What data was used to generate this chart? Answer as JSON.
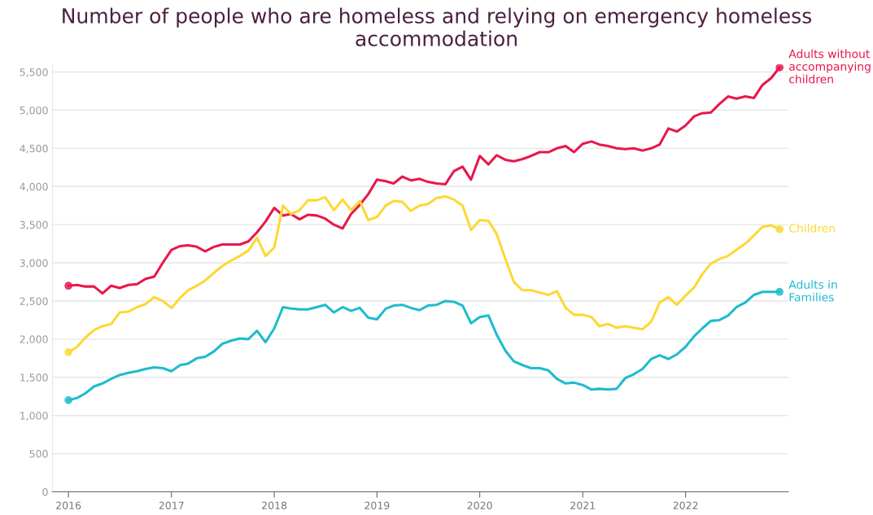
{
  "chart_data": {
    "type": "line",
    "title": "Number of people who are homeless and relying on emergency homeless accommodation",
    "x": [
      "2016-01",
      "2016-02",
      "2016-03",
      "2016-04",
      "2016-05",
      "2016-06",
      "2016-07",
      "2016-08",
      "2016-09",
      "2016-10",
      "2016-11",
      "2016-12",
      "2017-01",
      "2017-02",
      "2017-03",
      "2017-04",
      "2017-05",
      "2017-06",
      "2017-07",
      "2017-08",
      "2017-09",
      "2017-10",
      "2017-11",
      "2017-12",
      "2018-01",
      "2018-02",
      "2018-03",
      "2018-04",
      "2018-05",
      "2018-06",
      "2018-07",
      "2018-08",
      "2018-09",
      "2018-10",
      "2018-11",
      "2018-12",
      "2019-01",
      "2019-02",
      "2019-03",
      "2019-04",
      "2019-05",
      "2019-06",
      "2019-07",
      "2019-08",
      "2019-09",
      "2019-10",
      "2019-11",
      "2019-12",
      "2020-01",
      "2020-02",
      "2020-03",
      "2020-04",
      "2020-05",
      "2020-06",
      "2020-07",
      "2020-08",
      "2020-09",
      "2020-10",
      "2020-11",
      "2020-12",
      "2021-01",
      "2021-02",
      "2021-03",
      "2021-04",
      "2021-05",
      "2021-06",
      "2021-07",
      "2021-08",
      "2021-09",
      "2021-10",
      "2021-11",
      "2021-12",
      "2022-01",
      "2022-02",
      "2022-03",
      "2022-04",
      "2022-05",
      "2022-06",
      "2022-07",
      "2022-08",
      "2022-09",
      "2022-10",
      "2022-11",
      "2022-12"
    ],
    "series": [
      {
        "name": "Adults without accompanying children",
        "color": "#e8174a",
        "values": [
          2700,
          2710,
          2690,
          2690,
          2600,
          2700,
          2670,
          2710,
          2720,
          2790,
          2820,
          3000,
          3170,
          3220,
          3230,
          3210,
          3150,
          3210,
          3240,
          3240,
          3240,
          3280,
          3400,
          3540,
          3720,
          3620,
          3640,
          3570,
          3630,
          3620,
          3580,
          3500,
          3450,
          3640,
          3760,
          3900,
          4090,
          4070,
          4040,
          4130,
          4080,
          4100,
          4060,
          4040,
          4030,
          4200,
          4260,
          4090,
          4400,
          4290,
          4410,
          4350,
          4330,
          4360,
          4400,
          4450,
          4450,
          4500,
          4530,
          4450,
          4560,
          4590,
          4550,
          4530,
          4500,
          4490,
          4500,
          4470,
          4500,
          4550,
          4760,
          4720,
          4800,
          4920,
          4960,
          4970,
          5080,
          5180,
          5150,
          5180,
          5160,
          5330,
          5420,
          5560
        ]
      },
      {
        "name": "Children",
        "color": "#fdd835",
        "values": [
          1830,
          1900,
          2020,
          2120,
          2170,
          2200,
          2350,
          2360,
          2420,
          2460,
          2550,
          2500,
          2410,
          2540,
          2640,
          2700,
          2770,
          2870,
          2960,
          3030,
          3090,
          3160,
          3330,
          3090,
          3200,
          3750,
          3640,
          3690,
          3820,
          3820,
          3860,
          3690,
          3830,
          3690,
          3810,
          3560,
          3600,
          3750,
          3810,
          3800,
          3680,
          3750,
          3770,
          3850,
          3870,
          3830,
          3750,
          3430,
          3560,
          3550,
          3380,
          3050,
          2750,
          2640,
          2640,
          2610,
          2580,
          2630,
          2410,
          2320,
          2320,
          2290,
          2170,
          2200,
          2150,
          2170,
          2150,
          2130,
          2230,
          2480,
          2550,
          2450,
          2570,
          2680,
          2850,
          2990,
          3050,
          3090,
          3170,
          3250,
          3360,
          3470,
          3490,
          3440
        ]
      },
      {
        "name": "Adults in Families",
        "color": "#1ebccd",
        "values": [
          1200,
          1230,
          1290,
          1380,
          1420,
          1480,
          1530,
          1560,
          1580,
          1610,
          1630,
          1620,
          1580,
          1660,
          1680,
          1750,
          1770,
          1840,
          1940,
          1980,
          2010,
          2000,
          2110,
          1960,
          2140,
          2420,
          2400,
          2390,
          2390,
          2420,
          2450,
          2350,
          2420,
          2370,
          2410,
          2280,
          2260,
          2400,
          2440,
          2450,
          2410,
          2380,
          2440,
          2450,
          2500,
          2490,
          2440,
          2210,
          2290,
          2310,
          2060,
          1850,
          1710,
          1660,
          1620,
          1620,
          1590,
          1480,
          1420,
          1430,
          1400,
          1340,
          1350,
          1340,
          1350,
          1490,
          1540,
          1610,
          1740,
          1790,
          1740,
          1800,
          1900,
          2040,
          2140,
          2240,
          2250,
          2310,
          2420,
          2480,
          2580,
          2620,
          2620,
          2620
        ]
      }
    ],
    "xlim": [
      "2015-11-05",
      "2023-01"
    ],
    "xticks": [
      "2016",
      "2017",
      "2018",
      "2019",
      "2020",
      "2021",
      "2022"
    ],
    "ylim": [
      0,
      5600
    ],
    "yticks": [
      0,
      500,
      {
        "value": 1000,
        "label": "1,000"
      },
      {
        "value": 1500,
        "label": "1,500"
      },
      {
        "value": 2000,
        "label": "2,000"
      },
      {
        "value": 2500,
        "label": "2,500"
      },
      {
        "value": 3000,
        "label": "3,000"
      },
      {
        "value": 3500,
        "label": "3,500"
      },
      {
        "value": 4000,
        "label": "4,000"
      },
      {
        "value": 4500,
        "label": "4,500"
      },
      {
        "value": 5000,
        "label": "5,000"
      },
      {
        "value": 5500,
        "label": "5,500"
      }
    ],
    "grid": "y",
    "line_style": "solid",
    "legend": "right"
  }
}
